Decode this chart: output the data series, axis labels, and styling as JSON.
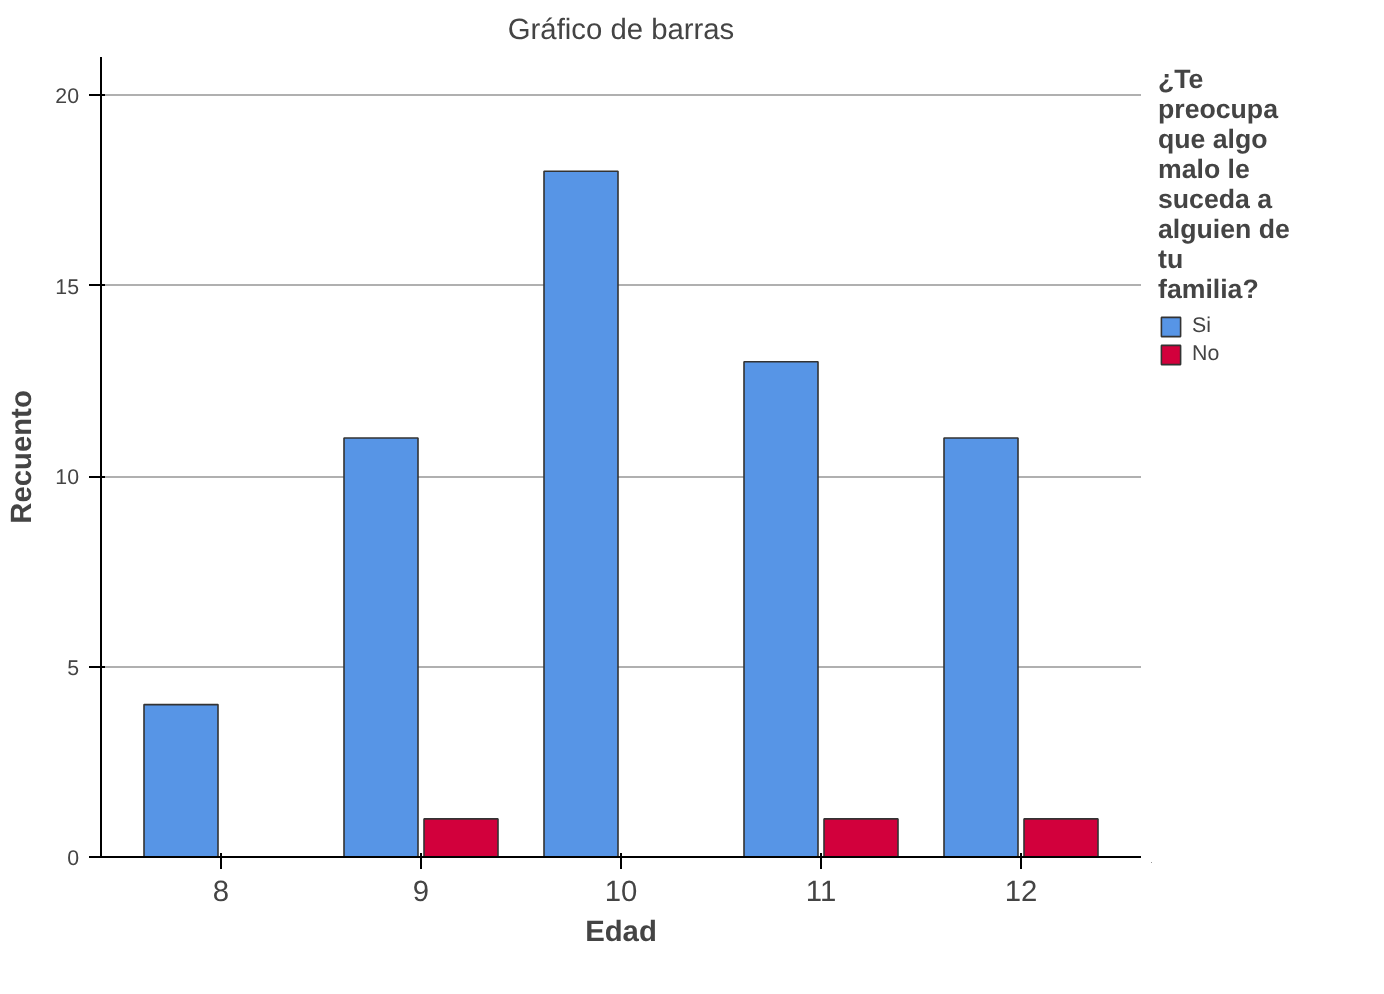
{
  "chart_data": {
    "type": "bar",
    "title": "Gráfico de barras",
    "xlabel": "Edad",
    "ylabel": "Recuento",
    "legend_title": "¿Te preocupa que algo malo le suceda a alguien de tu familia?",
    "categories": [
      "8",
      "9",
      "10",
      "11",
      "12"
    ],
    "series": [
      {
        "name": "Si",
        "color": "#5795e6",
        "values": [
          4,
          11,
          18,
          13,
          11
        ]
      },
      {
        "name": "No",
        "color": "#d2003c",
        "values": [
          null,
          1,
          null,
          1,
          1
        ]
      }
    ],
    "ylim": [
      0,
      21
    ],
    "yticks": [
      0,
      5,
      10,
      15,
      20
    ],
    "grid": "y",
    "legend": "right"
  }
}
